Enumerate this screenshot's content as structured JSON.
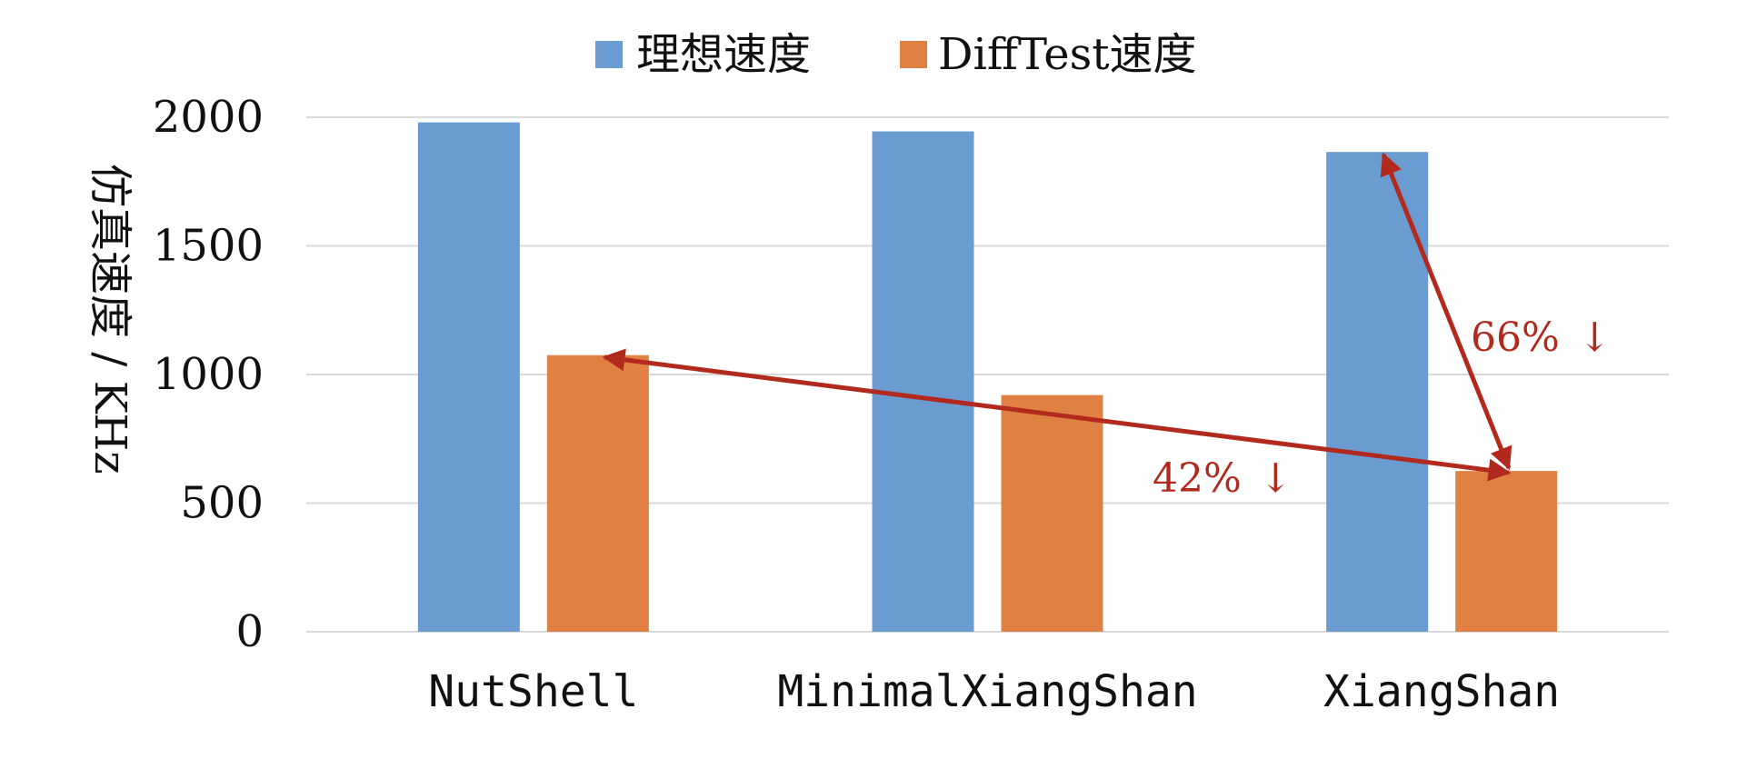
{
  "chart_data": {
    "type": "bar",
    "categories": [
      "NutShell",
      "MinimalXiangShan",
      "XiangShan"
    ],
    "series": [
      {
        "name": "理想速度",
        "color": "#6a9bd1",
        "values": [
          1980,
          1945,
          1865
        ]
      },
      {
        "name": "DiffTest速度",
        "color": "#e08143",
        "values": [
          1075,
          920,
          625
        ]
      }
    ],
    "ylabel": "仿真速度 / KHz",
    "ylim": [
      0,
      2000
    ],
    "yticks": [
      "0",
      "500",
      "1000",
      "1500",
      "2000"
    ],
    "grid": true,
    "legend_position": "top",
    "annotations": [
      {
        "text": "42%",
        "arrow": "↓"
      },
      {
        "text": "66%",
        "arrow": "↓"
      }
    ],
    "annotation_color": "#b22a1e"
  }
}
